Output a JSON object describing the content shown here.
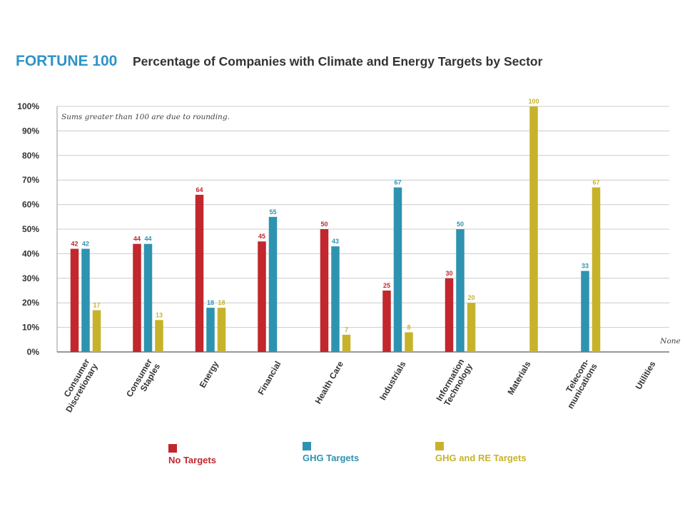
{
  "colors": {
    "no_targets": "#c1272d",
    "ghg_targets": "#2e93b0",
    "ghg_re_targets": "#c7b32b",
    "brand": "#2e93c9",
    "title": "#333333",
    "grid": "#cccccc"
  },
  "chart_data": {
    "type": "bar",
    "brand": "FORTUNE 100",
    "title": "Percentage of Companies with Climate and Energy Targets by Sector",
    "note": "Sums greater than 100 are due to rounding.",
    "ylim": [
      0,
      100
    ],
    "yticks": [
      "0%",
      "10%",
      "20%",
      "30%",
      "40%",
      "50%",
      "60%",
      "70%",
      "80%",
      "90%",
      "100%"
    ],
    "grid": true,
    "legend_position": "bottom",
    "categories": [
      [
        "Consumer",
        "Discretionary"
      ],
      [
        "Consumer",
        "Staples"
      ],
      [
        "Energy"
      ],
      [
        "Financial"
      ],
      [
        "Health Care"
      ],
      [
        "Industrials"
      ],
      [
        "Information",
        "Technology"
      ],
      [
        "Materials"
      ],
      [
        "Telecom-",
        "munications"
      ],
      [
        "Utilities"
      ]
    ],
    "series": [
      {
        "name": "No Targets",
        "values": [
          42,
          44,
          64,
          45,
          50,
          25,
          30,
          null,
          null,
          null
        ]
      },
      {
        "name": "GHG Targets",
        "values": [
          42,
          44,
          18,
          55,
          43,
          67,
          50,
          null,
          33,
          null
        ]
      },
      {
        "name": "GHG and RE Targets",
        "values": [
          17,
          13,
          18,
          null,
          7,
          8,
          20,
          100,
          67,
          null
        ]
      }
    ],
    "annotations": [
      {
        "category_index": 9,
        "text": "None"
      }
    ]
  }
}
